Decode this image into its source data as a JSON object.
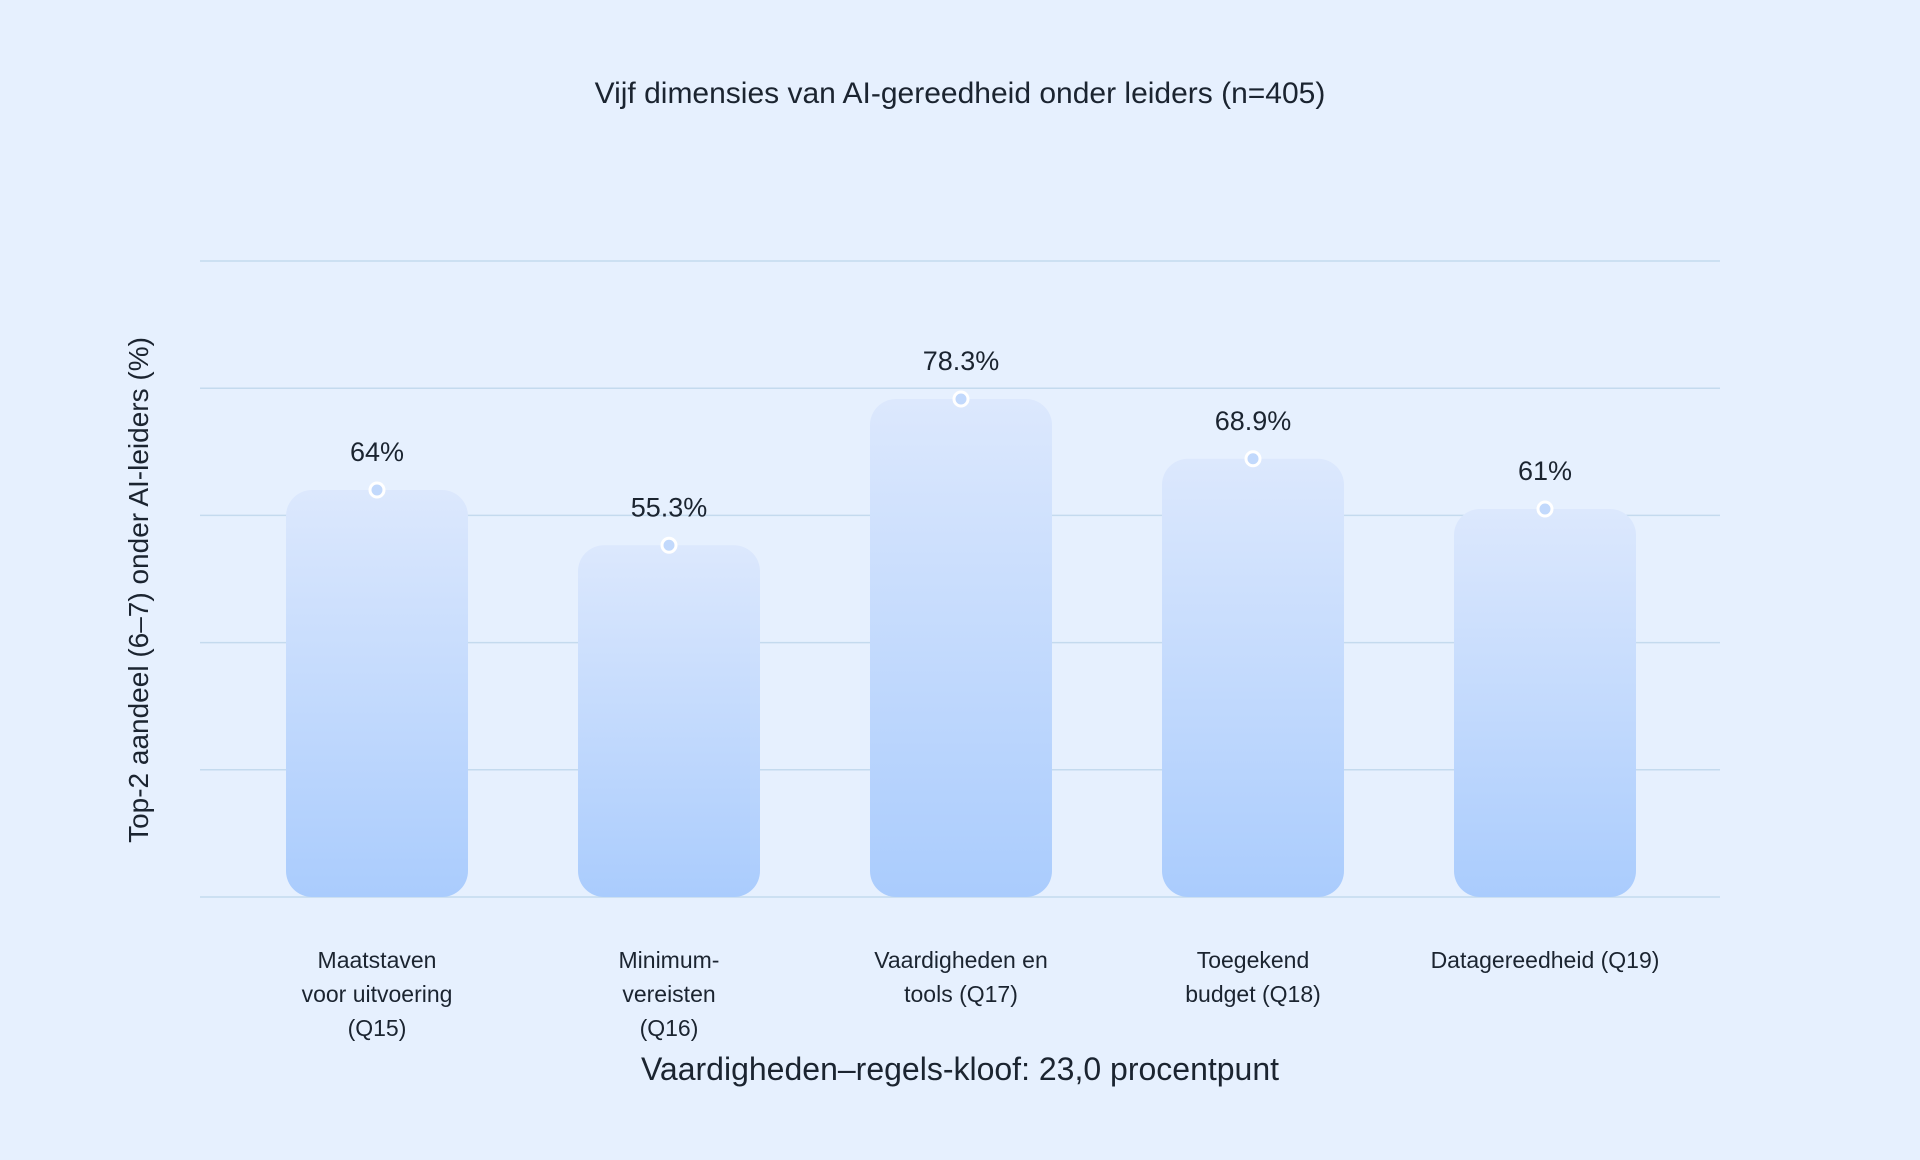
{
  "chart_data": {
    "type": "bar",
    "title": "Vijf dimensies van AI-gereedheid onder leiders (n=405)",
    "ylabel": "Top-2 aandeel (6–7) onder AI-leiders (%)",
    "xlabel": "",
    "categories": [
      [
        "Maatstaven",
        "voor uitvoering",
        "(Q15)"
      ],
      [
        "Minimum-",
        "vereisten",
        "(Q16)"
      ],
      [
        "Vaardigheden en",
        "tools (Q17)"
      ],
      [
        "Toegekend",
        "budget (Q18)"
      ],
      [
        "Datagereedheid (Q19)"
      ]
    ],
    "values": [
      64,
      55.3,
      78.3,
      68.9,
      61
    ],
    "value_labels": [
      "64%",
      "55.3%",
      "78.3%",
      "68.9%",
      "61%"
    ],
    "ylim": [
      0,
      100
    ],
    "grid": true,
    "gridline_values": [
      0,
      20,
      40,
      60,
      80,
      100
    ],
    "annotation": "Vaardigheden–regels-kloof: 23,0 procentpunt",
    "colors": {
      "background": "#E6F0FE",
      "bar_top": "#DCE8FD",
      "bar_bottom": "#AACCFD",
      "gridline": "#C4DAEE",
      "marker": "#C2D9FC",
      "text": "#1B2430"
    }
  }
}
